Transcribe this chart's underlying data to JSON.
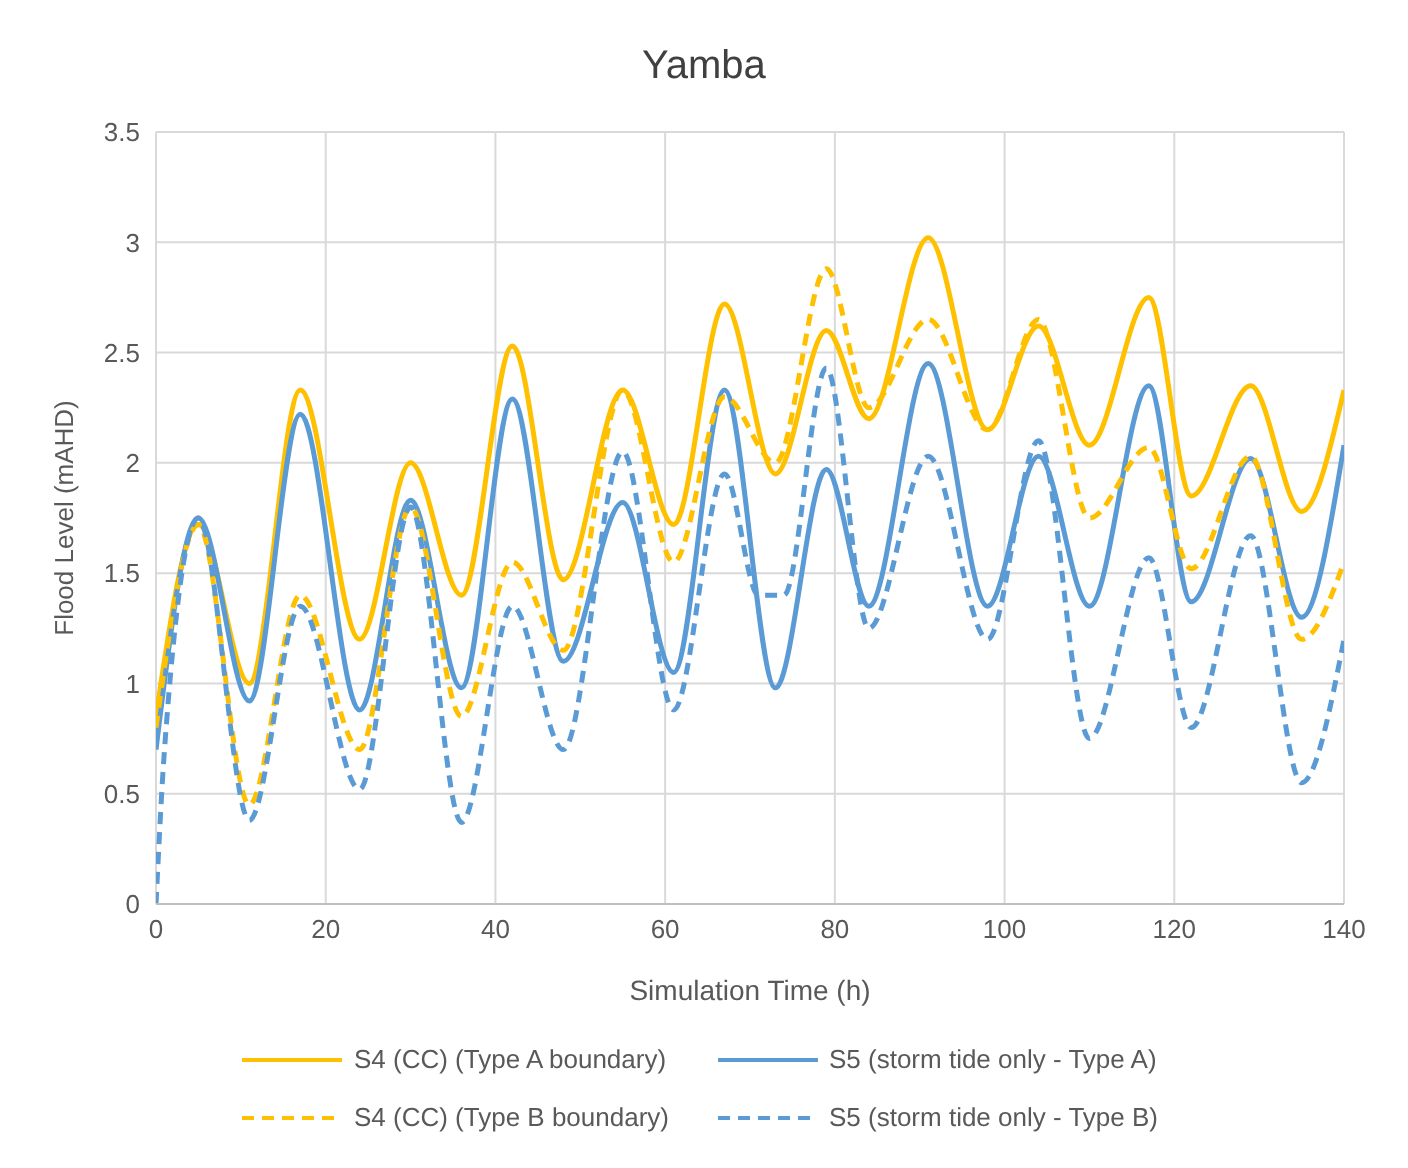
{
  "chart_data": {
    "type": "line",
    "title": "Yamba",
    "xlabel": "Simulation Time (h)",
    "ylabel": "Flood Level  (mAHD)",
    "xlim": [
      0,
      140
    ],
    "xticks": [
      0,
      20,
      40,
      60,
      80,
      100,
      120,
      140
    ],
    "ylim": [
      0,
      3.5
    ],
    "yticks": [
      0,
      0.5,
      1,
      1.5,
      2,
      2.5,
      3,
      3.5
    ],
    "grid": true,
    "legend": "bottom",
    "marker": "none",
    "series": [
      {
        "name": "S4 (CC) (Type A boundary)",
        "color": "#ffc000",
        "line_style": "solid",
        "x": [
          0,
          5,
          11,
          17,
          24,
          30,
          36,
          42,
          48,
          55,
          61,
          67,
          73,
          79,
          84,
          91,
          98,
          104,
          110,
          117,
          122,
          129,
          135,
          140
        ],
        "values": [
          0.85,
          1.72,
          1.0,
          2.33,
          1.2,
          2.0,
          1.4,
          2.53,
          1.47,
          2.33,
          1.72,
          2.72,
          1.95,
          2.6,
          2.2,
          3.02,
          2.15,
          2.62,
          2.08,
          2.75,
          1.85,
          2.35,
          1.78,
          2.33
        ]
      },
      {
        "name": "S5 (storm tide only - Type A)",
        "color": "#5b9bd5",
        "line_style": "solid",
        "x": [
          0,
          5,
          11,
          17,
          24,
          30,
          36,
          42,
          48,
          55,
          61,
          67,
          73,
          79,
          84,
          91,
          98,
          104,
          110,
          117,
          122,
          129,
          135,
          140
        ],
        "values": [
          0.7,
          1.75,
          0.92,
          2.22,
          0.88,
          1.83,
          0.98,
          2.29,
          1.1,
          1.82,
          1.05,
          2.33,
          0.98,
          1.97,
          1.35,
          2.45,
          1.35,
          2.03,
          1.35,
          2.35,
          1.37,
          2.02,
          1.3,
          2.08
        ]
      },
      {
        "name": "S4 (CC) (Type B boundary)",
        "color": "#ffc000",
        "line_style": "dashed",
        "x": [
          0,
          5,
          11,
          17,
          24,
          30,
          36,
          42,
          48,
          55,
          61,
          67,
          73,
          79,
          84,
          91,
          98,
          104,
          110,
          117,
          122,
          129,
          135,
          140
        ],
        "values": [
          0.8,
          1.72,
          0.45,
          1.4,
          0.7,
          1.8,
          0.85,
          1.55,
          1.15,
          2.33,
          1.55,
          2.3,
          2.0,
          2.88,
          2.25,
          2.65,
          2.15,
          2.65,
          1.75,
          2.07,
          1.52,
          2.03,
          1.2,
          1.55
        ]
      },
      {
        "name": "S5 (storm tide only - Type B)",
        "color": "#5b9bd5",
        "line_style": "dashed",
        "x": [
          0,
          1,
          5,
          11,
          17,
          24,
          30,
          36,
          42,
          48,
          55,
          61,
          67,
          71,
          74,
          79,
          84,
          91,
          98,
          104,
          110,
          117,
          122,
          129,
          135,
          140
        ],
        "values": [
          0,
          0.7,
          1.75,
          0.38,
          1.35,
          0.52,
          1.8,
          0.37,
          1.35,
          0.7,
          2.05,
          0.88,
          1.95,
          1.4,
          1.4,
          2.43,
          1.25,
          2.03,
          1.2,
          2.1,
          0.75,
          1.57,
          0.8,
          1.67,
          0.55,
          1.2
        ]
      }
    ]
  }
}
